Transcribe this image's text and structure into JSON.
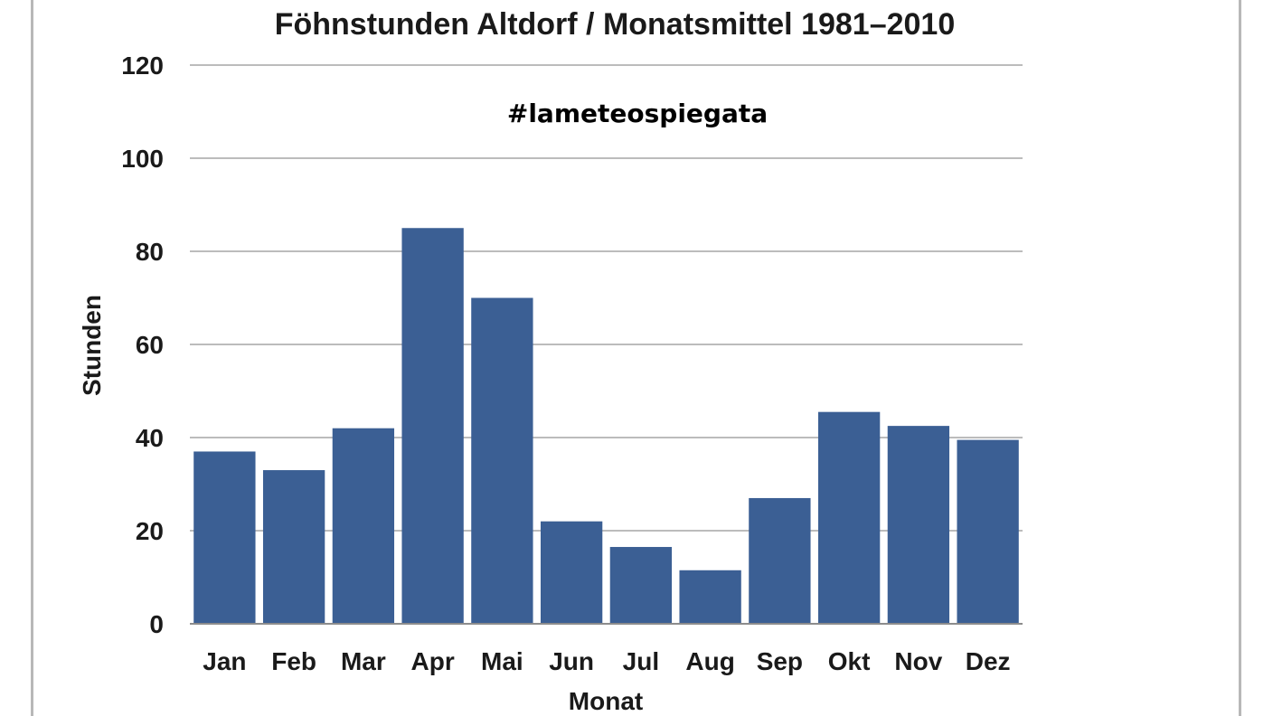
{
  "chart_data": {
    "type": "bar",
    "title": "Föhnstunden Altdorf   /  Monatsmittel 1981–2010",
    "annotation": "#lameteospiegata",
    "xlabel": "Monat",
    "ylabel": "Stunden",
    "categories": [
      "Jan",
      "Feb",
      "Mar",
      "Apr",
      "Mai",
      "Jun",
      "Jul",
      "Aug",
      "Sep",
      "Okt",
      "Nov",
      "Dez"
    ],
    "series": [
      {
        "values": [
          37,
          33,
          42,
          85,
          70,
          22,
          16.5,
          11.5,
          27,
          45.5,
          42.5,
          39.5
        ]
      }
    ],
    "ylim": [
      0,
      120
    ],
    "yticks": [
      "0",
      "20",
      "40",
      "60",
      "80",
      "100",
      "120"
    ],
    "grid": true,
    "legend": "none",
    "colors": {
      "bar": "#3b5f94",
      "grid": "#a6a6a6"
    }
  }
}
